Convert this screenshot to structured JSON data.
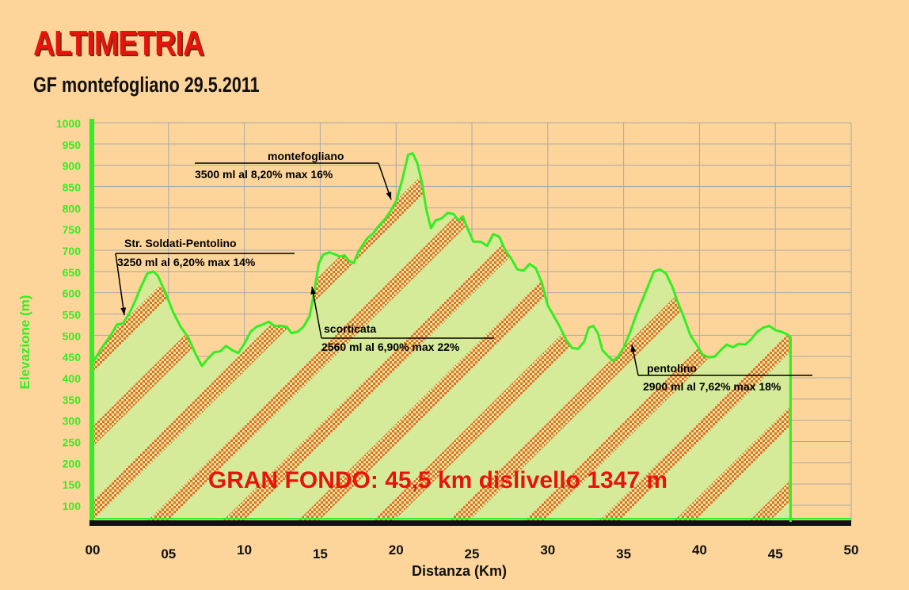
{
  "title": "ALTIMETRIA",
  "subtitle": "GF montefogliano 29.5.2011",
  "chart_data": {
    "type": "area",
    "xlabel": "Distanza (Km)",
    "ylabel": "Elevazione (m)",
    "xlim": [
      0,
      50
    ],
    "ylim": [
      50,
      1000
    ],
    "x_ticks": [
      "00",
      "05",
      "10",
      "15",
      "20",
      "25",
      "30",
      "35",
      "40",
      "45",
      "50"
    ],
    "x_tick_values": [
      0,
      5,
      10,
      15,
      20,
      25,
      30,
      35,
      40,
      45,
      50
    ],
    "y_ticks": [
      "1000",
      "950",
      "900",
      "850",
      "800",
      "750",
      "700",
      "650",
      "600",
      "550",
      "500",
      "450",
      "400",
      "350",
      "300",
      "250",
      "200",
      "150",
      "100"
    ],
    "y_tick_values": [
      1000,
      950,
      900,
      850,
      800,
      750,
      700,
      650,
      600,
      550,
      500,
      450,
      400,
      350,
      300,
      250,
      200,
      150,
      100
    ],
    "grid": true,
    "colors": {
      "line": "#33ee22",
      "fill": "#d6eb9a",
      "stripes": "#ee6a28",
      "axis": "#33ee22",
      "ticks": "#33ee22",
      "annotation": "#000000",
      "banner": "#e8140c"
    },
    "profile": [
      [
        0.0,
        435
      ],
      [
        0.6,
        470
      ],
      [
        1.2,
        500
      ],
      [
        1.6,
        525
      ],
      [
        2.0,
        528
      ],
      [
        2.4,
        550
      ],
      [
        2.8,
        580
      ],
      [
        3.2,
        615
      ],
      [
        3.6,
        645
      ],
      [
        4.0,
        650
      ],
      [
        4.3,
        640
      ],
      [
        4.8,
        600
      ],
      [
        5.3,
        555
      ],
      [
        5.8,
        520
      ],
      [
        6.3,
        495
      ],
      [
        6.8,
        455
      ],
      [
        7.2,
        428
      ],
      [
        7.6,
        445
      ],
      [
        8.0,
        460
      ],
      [
        8.4,
        462
      ],
      [
        8.8,
        475
      ],
      [
        9.2,
        465
      ],
      [
        9.6,
        458
      ],
      [
        10.0,
        480
      ],
      [
        10.4,
        508
      ],
      [
        10.8,
        520
      ],
      [
        11.2,
        525
      ],
      [
        11.6,
        532
      ],
      [
        12.0,
        522
      ],
      [
        12.4,
        522
      ],
      [
        12.8,
        520
      ],
      [
        13.1,
        505
      ],
      [
        13.5,
        508
      ],
      [
        13.9,
        520
      ],
      [
        14.3,
        545
      ],
      [
        14.6,
        600
      ],
      [
        14.9,
        668
      ],
      [
        15.2,
        690
      ],
      [
        15.6,
        695
      ],
      [
        16.0,
        690
      ],
      [
        16.3,
        685
      ],
      [
        16.6,
        688
      ],
      [
        16.9,
        675
      ],
      [
        17.2,
        670
      ],
      [
        17.5,
        695
      ],
      [
        17.8,
        712
      ],
      [
        18.1,
        728
      ],
      [
        18.5,
        740
      ],
      [
        18.8,
        755
      ],
      [
        19.2,
        770
      ],
      [
        19.6,
        790
      ],
      [
        20.0,
        815
      ],
      [
        20.4,
        865
      ],
      [
        20.8,
        925
      ],
      [
        21.1,
        928
      ],
      [
        21.4,
        905
      ],
      [
        21.7,
        860
      ],
      [
        22.0,
        795
      ],
      [
        22.3,
        752
      ],
      [
        22.6,
        770
      ],
      [
        23.0,
        775
      ],
      [
        23.4,
        788
      ],
      [
        23.8,
        785
      ],
      [
        24.1,
        770
      ],
      [
        24.4,
        780
      ],
      [
        24.7,
        752
      ],
      [
        25.1,
        720
      ],
      [
        25.6,
        720
      ],
      [
        26.0,
        710
      ],
      [
        26.4,
        738
      ],
      [
        26.8,
        732
      ],
      [
        27.2,
        700
      ],
      [
        27.6,
        680
      ],
      [
        28.0,
        655
      ],
      [
        28.4,
        652
      ],
      [
        28.8,
        668
      ],
      [
        29.2,
        658
      ],
      [
        29.6,
        625
      ],
      [
        30.0,
        570
      ],
      [
        30.4,
        545
      ],
      [
        30.8,
        520
      ],
      [
        31.2,
        490
      ],
      [
        31.6,
        470
      ],
      [
        32.0,
        468
      ],
      [
        32.4,
        485
      ],
      [
        32.7,
        518
      ],
      [
        33.0,
        522
      ],
      [
        33.3,
        505
      ],
      [
        33.6,
        465
      ],
      [
        34.0,
        450
      ],
      [
        34.3,
        440
      ],
      [
        34.6,
        448
      ],
      [
        35.0,
        470
      ],
      [
        35.4,
        505
      ],
      [
        35.8,
        545
      ],
      [
        36.2,
        580
      ],
      [
        36.6,
        615
      ],
      [
        37.0,
        650
      ],
      [
        37.4,
        655
      ],
      [
        37.8,
        645
      ],
      [
        38.2,
        615
      ],
      [
        38.6,
        575
      ],
      [
        39.0,
        540
      ],
      [
        39.4,
        500
      ],
      [
        39.8,
        478
      ],
      [
        40.2,
        455
      ],
      [
        40.6,
        448
      ],
      [
        41.0,
        450
      ],
      [
        41.4,
        465
      ],
      [
        41.8,
        478
      ],
      [
        42.2,
        472
      ],
      [
        42.6,
        480
      ],
      [
        43.0,
        478
      ],
      [
        43.4,
        490
      ],
      [
        43.8,
        508
      ],
      [
        44.2,
        518
      ],
      [
        44.6,
        522
      ],
      [
        45.0,
        512
      ],
      [
        45.4,
        508
      ],
      [
        45.8,
        502
      ],
      [
        46.0,
        495
      ]
    ],
    "annotations": [
      {
        "name": "Str. Soldati-Pentolino",
        "detail": "3250 ml al 6,20% max 14%"
      },
      {
        "name": "montefogliano",
        "detail": "3500 ml al 8,20% max 16%"
      },
      {
        "name": "scorticata",
        "detail": "2560 ml al 6,90% max 22%"
      },
      {
        "name": "pentolino",
        "detail": "2900 ml al 7,62% max 18%"
      }
    ],
    "banner": "GRAN FONDO: 45,5 km dislivello 1347 m"
  }
}
